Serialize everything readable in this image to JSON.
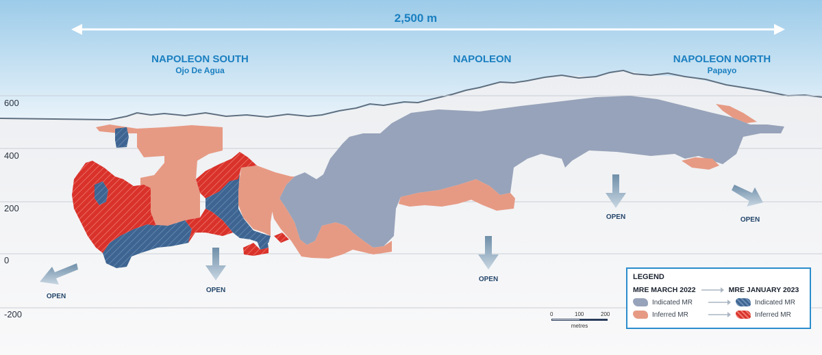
{
  "scale_length": "2,500 m",
  "regions": [
    {
      "name": "NAPOLEON SOUTH",
      "sub": "Ojo De Agua"
    },
    {
      "name": "NAPOLEON",
      "sub": ""
    },
    {
      "name": "NAPOLEON NORTH",
      "sub": "Papayo"
    }
  ],
  "elevations": [
    "600",
    "400",
    "200",
    "0",
    "-200"
  ],
  "open_label": "OPEN",
  "legend": {
    "title": "LEGEND",
    "from": "MRE MARCH 2022",
    "to": "MRE JANUARY 2023",
    "indicated": "Indicated MR",
    "inferred": "Inferred MR"
  },
  "scale_bar": {
    "ticks": [
      "0",
      "100",
      "200"
    ],
    "unit": "metres"
  },
  "colors": {
    "indicated_2022": "#97a3ba",
    "inferred_2022": "#e69a84",
    "indicated_2023": "#3e6592",
    "inferred_2023": "#d9322b",
    "title_blue": "#1a7fc0"
  }
}
